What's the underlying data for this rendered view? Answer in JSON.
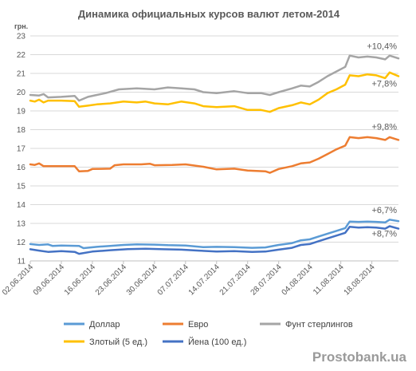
{
  "chart_data": {
    "type": "line",
    "title": "Динамика официальных курсов валют летом-2014",
    "unit_label": "грн.",
    "ylim": [
      11,
      23
    ],
    "yticks": [
      11,
      12,
      13,
      14,
      15,
      16,
      17,
      18,
      19,
      20,
      21,
      22,
      23
    ],
    "xlim": [
      "2014-06-02",
      "2014-08-24"
    ],
    "x_tick_labels": [
      "02.06.2014",
      "09.06.2014",
      "16.06.2014",
      "23.06.2014",
      "30.06.2014",
      "07.07.2014",
      "14.07.2014",
      "21.07.2014",
      "28.07.2014",
      "04.08.2014",
      "11.08.2014",
      "18.08.2014"
    ],
    "grid": "horizontal",
    "legend_position": "bottom",
    "series": [
      {
        "name": "Доллар",
        "color": "#5b9bd5",
        "points": [
          [
            "2014-06-02",
            11.9
          ],
          [
            "2014-06-04",
            11.85
          ],
          [
            "2014-06-06",
            11.88
          ],
          [
            "2014-06-07",
            11.8
          ],
          [
            "2014-06-09",
            11.82
          ],
          [
            "2014-06-13",
            11.8
          ],
          [
            "2014-06-14",
            11.68
          ],
          [
            "2014-06-17",
            11.75
          ],
          [
            "2014-06-20",
            11.8
          ],
          [
            "2014-06-23",
            11.85
          ],
          [
            "2014-06-26",
            11.88
          ],
          [
            "2014-06-30",
            11.87
          ],
          [
            "2014-07-03",
            11.84
          ],
          [
            "2014-07-07",
            11.82
          ],
          [
            "2014-07-11",
            11.73
          ],
          [
            "2014-07-14",
            11.75
          ],
          [
            "2014-07-18",
            11.73
          ],
          [
            "2014-07-22",
            11.7
          ],
          [
            "2014-07-25",
            11.72
          ],
          [
            "2014-07-28",
            11.85
          ],
          [
            "2014-07-31",
            11.95
          ],
          [
            "2014-08-02",
            12.1
          ],
          [
            "2014-08-04",
            12.15
          ],
          [
            "2014-08-06",
            12.3
          ],
          [
            "2014-08-08",
            12.45
          ],
          [
            "2014-08-10",
            12.6
          ],
          [
            "2014-08-12",
            12.75
          ],
          [
            "2014-08-13",
            13.1
          ],
          [
            "2014-08-15",
            13.08
          ],
          [
            "2014-08-17",
            13.1
          ],
          [
            "2014-08-19",
            13.08
          ],
          [
            "2014-08-21",
            13.05
          ],
          [
            "2014-08-22",
            13.2
          ],
          [
            "2014-08-24",
            13.12
          ]
        ]
      },
      {
        "name": "Евро",
        "color": "#ed7d31",
        "points": [
          [
            "2014-06-02",
            16.15
          ],
          [
            "2014-06-03",
            16.12
          ],
          [
            "2014-06-04",
            16.2
          ],
          [
            "2014-06-05",
            16.05
          ],
          [
            "2014-06-09",
            16.05
          ],
          [
            "2014-06-12",
            16.05
          ],
          [
            "2014-06-13",
            15.78
          ],
          [
            "2014-06-15",
            15.8
          ],
          [
            "2014-06-16",
            15.9
          ],
          [
            "2014-06-20",
            15.92
          ],
          [
            "2014-06-21",
            16.1
          ],
          [
            "2014-06-23",
            16.15
          ],
          [
            "2014-06-27",
            16.15
          ],
          [
            "2014-06-29",
            16.18
          ],
          [
            "2014-06-30",
            16.1
          ],
          [
            "2014-07-04",
            16.12
          ],
          [
            "2014-07-07",
            16.15
          ],
          [
            "2014-07-11",
            16.02
          ],
          [
            "2014-07-14",
            15.88
          ],
          [
            "2014-07-18",
            15.92
          ],
          [
            "2014-07-21",
            15.82
          ],
          [
            "2014-07-25",
            15.78
          ],
          [
            "2014-07-26",
            15.7
          ],
          [
            "2014-07-28",
            15.9
          ],
          [
            "2014-07-31",
            16.05
          ],
          [
            "2014-08-02",
            16.2
          ],
          [
            "2014-08-04",
            16.25
          ],
          [
            "2014-08-06",
            16.45
          ],
          [
            "2014-08-08",
            16.7
          ],
          [
            "2014-08-10",
            16.95
          ],
          [
            "2014-08-12",
            17.15
          ],
          [
            "2014-08-13",
            17.6
          ],
          [
            "2014-08-15",
            17.55
          ],
          [
            "2014-08-17",
            17.6
          ],
          [
            "2014-08-19",
            17.55
          ],
          [
            "2014-08-21",
            17.45
          ],
          [
            "2014-08-22",
            17.6
          ],
          [
            "2014-08-24",
            17.45
          ]
        ]
      },
      {
        "name": "Фунт стерлингов",
        "color": "#a5a5a5",
        "points": [
          [
            "2014-06-02",
            19.85
          ],
          [
            "2014-06-04",
            19.82
          ],
          [
            "2014-06-05",
            19.9
          ],
          [
            "2014-06-06",
            19.72
          ],
          [
            "2014-06-09",
            19.75
          ],
          [
            "2014-06-12",
            19.8
          ],
          [
            "2014-06-13",
            19.55
          ],
          [
            "2014-06-15",
            19.75
          ],
          [
            "2014-06-17",
            19.85
          ],
          [
            "2014-06-19",
            19.95
          ],
          [
            "2014-06-22",
            20.15
          ],
          [
            "2014-06-26",
            20.2
          ],
          [
            "2014-06-30",
            20.15
          ],
          [
            "2014-07-03",
            20.25
          ],
          [
            "2014-07-06",
            20.2
          ],
          [
            "2014-07-09",
            20.15
          ],
          [
            "2014-07-11",
            20.0
          ],
          [
            "2014-07-14",
            19.95
          ],
          [
            "2014-07-18",
            20.05
          ],
          [
            "2014-07-21",
            19.95
          ],
          [
            "2014-07-24",
            19.95
          ],
          [
            "2014-07-26",
            19.85
          ],
          [
            "2014-07-28",
            20.0
          ],
          [
            "2014-07-31",
            20.2
          ],
          [
            "2014-08-02",
            20.35
          ],
          [
            "2014-08-04",
            20.3
          ],
          [
            "2014-08-06",
            20.55
          ],
          [
            "2014-08-08",
            20.85
          ],
          [
            "2014-08-10",
            21.1
          ],
          [
            "2014-08-12",
            21.35
          ],
          [
            "2014-08-13",
            21.95
          ],
          [
            "2014-08-15",
            21.85
          ],
          [
            "2014-08-17",
            21.9
          ],
          [
            "2014-08-19",
            21.85
          ],
          [
            "2014-08-21",
            21.75
          ],
          [
            "2014-08-22",
            21.95
          ],
          [
            "2014-08-24",
            21.8
          ]
        ]
      },
      {
        "name": "Злотый (5 ед.)",
        "color": "#ffc000",
        "points": [
          [
            "2014-06-02",
            19.55
          ],
          [
            "2014-06-03",
            19.5
          ],
          [
            "2014-06-04",
            19.6
          ],
          [
            "2014-06-05",
            19.45
          ],
          [
            "2014-06-06",
            19.55
          ],
          [
            "2014-06-09",
            19.55
          ],
          [
            "2014-06-12",
            19.52
          ],
          [
            "2014-06-13",
            19.22
          ],
          [
            "2014-06-15",
            19.28
          ],
          [
            "2014-06-17",
            19.35
          ],
          [
            "2014-06-20",
            19.4
          ],
          [
            "2014-06-23",
            19.5
          ],
          [
            "2014-06-26",
            19.45
          ],
          [
            "2014-06-28",
            19.5
          ],
          [
            "2014-06-30",
            19.4
          ],
          [
            "2014-07-03",
            19.35
          ],
          [
            "2014-07-06",
            19.5
          ],
          [
            "2014-07-09",
            19.4
          ],
          [
            "2014-07-11",
            19.25
          ],
          [
            "2014-07-14",
            19.2
          ],
          [
            "2014-07-18",
            19.25
          ],
          [
            "2014-07-21",
            19.05
          ],
          [
            "2014-07-24",
            19.05
          ],
          [
            "2014-07-26",
            18.95
          ],
          [
            "2014-07-28",
            19.15
          ],
          [
            "2014-07-31",
            19.3
          ],
          [
            "2014-08-02",
            19.45
          ],
          [
            "2014-08-04",
            19.35
          ],
          [
            "2014-08-06",
            19.6
          ],
          [
            "2014-08-08",
            19.95
          ],
          [
            "2014-08-10",
            20.15
          ],
          [
            "2014-08-12",
            20.4
          ],
          [
            "2014-08-13",
            20.9
          ],
          [
            "2014-08-15",
            20.85
          ],
          [
            "2014-08-17",
            20.95
          ],
          [
            "2014-08-19",
            20.9
          ],
          [
            "2014-08-21",
            20.75
          ],
          [
            "2014-08-22",
            21.05
          ],
          [
            "2014-08-24",
            20.85
          ]
        ]
      },
      {
        "name": "Йена (100 ед.)",
        "color": "#4472c4",
        "points": [
          [
            "2014-06-02",
            11.62
          ],
          [
            "2014-06-04",
            11.55
          ],
          [
            "2014-06-06",
            11.48
          ],
          [
            "2014-06-09",
            11.52
          ],
          [
            "2014-06-12",
            11.48
          ],
          [
            "2014-06-13",
            11.38
          ],
          [
            "2014-06-16",
            11.5
          ],
          [
            "2014-06-20",
            11.57
          ],
          [
            "2014-06-24",
            11.63
          ],
          [
            "2014-06-28",
            11.65
          ],
          [
            "2014-07-02",
            11.62
          ],
          [
            "2014-07-06",
            11.6
          ],
          [
            "2014-07-10",
            11.55
          ],
          [
            "2014-07-14",
            11.5
          ],
          [
            "2014-07-18",
            11.52
          ],
          [
            "2014-07-22",
            11.48
          ],
          [
            "2014-07-25",
            11.5
          ],
          [
            "2014-07-28",
            11.6
          ],
          [
            "2014-07-31",
            11.7
          ],
          [
            "2014-08-02",
            11.85
          ],
          [
            "2014-08-04",
            11.9
          ],
          [
            "2014-08-06",
            12.05
          ],
          [
            "2014-08-08",
            12.2
          ],
          [
            "2014-08-10",
            12.35
          ],
          [
            "2014-08-12",
            12.5
          ],
          [
            "2014-08-13",
            12.82
          ],
          [
            "2014-08-15",
            12.78
          ],
          [
            "2014-08-17",
            12.8
          ],
          [
            "2014-08-19",
            12.78
          ],
          [
            "2014-08-21",
            12.72
          ],
          [
            "2014-08-22",
            12.85
          ],
          [
            "2014-08-24",
            12.72
          ]
        ]
      }
    ],
    "annotations": [
      {
        "text": "+10,4%",
        "x": "2014-08-24",
        "y": 22.3
      },
      {
        "text": "+7,8%",
        "x": "2014-08-24",
        "y": 20.3
      },
      {
        "text": "+9,8%",
        "x": "2014-08-24",
        "y": 18.0
      },
      {
        "text": "+6,7%",
        "x": "2014-08-24",
        "y": 13.55
      },
      {
        "text": "+8,7%",
        "x": "2014-08-24",
        "y": 12.3
      }
    ],
    "legend": [
      {
        "label": "Доллар",
        "color": "#5b9bd5"
      },
      {
        "label": "Евро",
        "color": "#ed7d31"
      },
      {
        "label": "Фунт стерлингов",
        "color": "#a5a5a5"
      },
      {
        "label": "Злотый (5 ед.)",
        "color": "#ffc000"
      },
      {
        "label": "Йена (100 ед.)",
        "color": "#4472c4"
      }
    ]
  },
  "watermark": "Prostobank.ua"
}
